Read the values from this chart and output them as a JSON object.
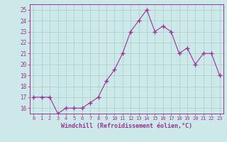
{
  "x": [
    0,
    1,
    2,
    3,
    4,
    5,
    6,
    7,
    8,
    9,
    10,
    11,
    12,
    13,
    14,
    15,
    16,
    17,
    18,
    19,
    20,
    21,
    22,
    23
  ],
  "y": [
    17,
    17,
    17,
    15.5,
    16,
    16,
    16,
    16.5,
    17,
    18.5,
    19.5,
    21,
    23,
    24,
    25,
    23,
    23.5,
    23,
    21,
    21.5,
    20,
    21,
    21,
    19
  ],
  "line_color": "#993399",
  "marker": "+",
  "marker_size": 4,
  "bg_color": "#cce8e8",
  "grid_color": "#aacccc",
  "xlabel": "Windchill (Refroidissement éolien,°C)",
  "xlabel_color": "#993399",
  "tick_color": "#993399",
  "ylim": [
    15.5,
    25.5
  ],
  "xlim": [
    -0.5,
    23.5
  ],
  "yticks": [
    16,
    17,
    18,
    19,
    20,
    21,
    22,
    23,
    24,
    25
  ],
  "xticks": [
    0,
    1,
    2,
    3,
    4,
    5,
    6,
    7,
    8,
    9,
    10,
    11,
    12,
    13,
    14,
    15,
    16,
    17,
    18,
    19,
    20,
    21,
    22,
    23
  ]
}
